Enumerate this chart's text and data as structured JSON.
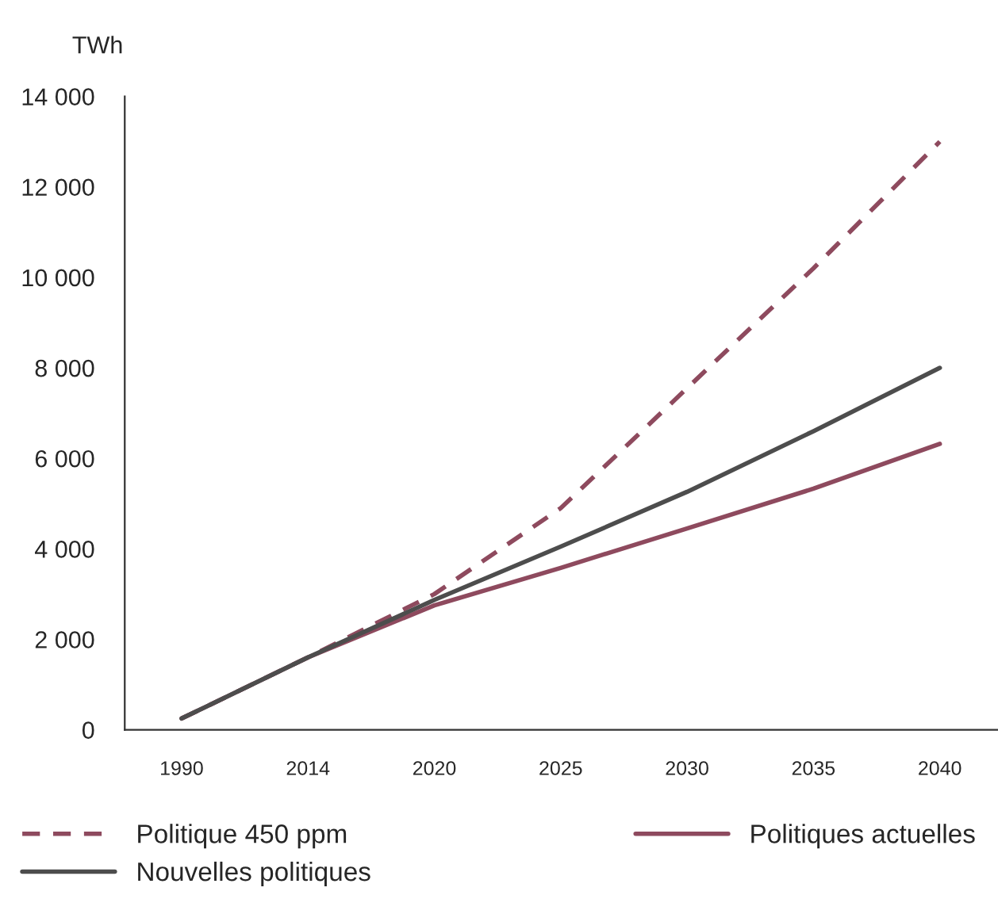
{
  "chart_data": {
    "type": "line",
    "ylabel": "TWh",
    "categories": [
      "1990",
      "2014",
      "2020",
      "2025",
      "2030",
      "2035",
      "2040"
    ],
    "series": [
      {
        "name": "Politique 450 ppm",
        "color": "#8e4a5e",
        "line_style": "dashed",
        "values": [
          250,
          1600,
          3000,
          4900,
          7550,
          10200,
          13000
        ]
      },
      {
        "name": "Politiques actuelles",
        "color": "#8e4a5e",
        "line_style": "solid",
        "values": [
          250,
          1600,
          2750,
          3580,
          4450,
          5330,
          6320
        ]
      },
      {
        "name": "Nouvelles politiques",
        "color": "#4d4d4d",
        "line_style": "solid",
        "values": [
          250,
          1600,
          2870,
          4050,
          5260,
          6600,
          8000
        ]
      }
    ],
    "ylim": [
      0,
      14000
    ],
    "yticks": [
      {
        "value": 0,
        "label": "0"
      },
      {
        "value": 2000,
        "label": "2 000"
      },
      {
        "value": 4000,
        "label": "4 000"
      },
      {
        "value": 6000,
        "label": "6 000"
      },
      {
        "value": 8000,
        "label": "8 000"
      },
      {
        "value": 10000,
        "label": "10 000"
      },
      {
        "value": 12000,
        "label": "12 000"
      },
      {
        "value": 14000,
        "label": "14 000"
      }
    ],
    "grid": false,
    "legend": "bottom",
    "marker": "none"
  }
}
